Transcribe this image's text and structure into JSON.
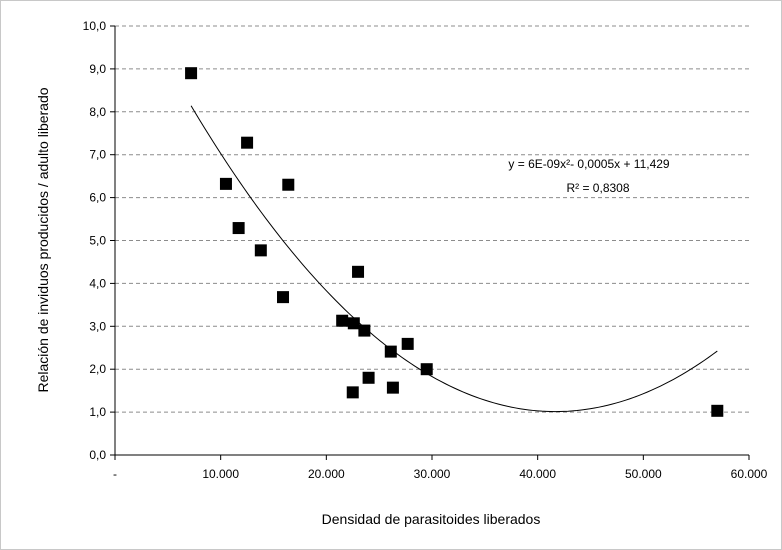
{
  "chart_data": {
    "type": "scatter",
    "xlabel": "Densidad de parasitoides liberados",
    "ylabel": "Relación de inviduos producidos / adulto liberado",
    "xlim": [
      0,
      60000
    ],
    "ylim": [
      0,
      10
    ],
    "x_tick_labels": [
      "-",
      "10.000",
      "20.000",
      "30.000",
      "40.000",
      "50.000",
      "60.000"
    ],
    "y_tick_labels": [
      "0,0",
      "1,0",
      "2,0",
      "3,0",
      "4,0",
      "5,0",
      "6,0",
      "7,0",
      "8,0",
      "9,0",
      "10,0"
    ],
    "grid": "horizontal dashed",
    "marker": "square",
    "marker_color": "#000000",
    "points": [
      {
        "x": 7200,
        "y": 8.9
      },
      {
        "x": 10500,
        "y": 6.32
      },
      {
        "x": 12500,
        "y": 7.28
      },
      {
        "x": 11700,
        "y": 5.29
      },
      {
        "x": 13800,
        "y": 4.77
      },
      {
        "x": 16400,
        "y": 6.3
      },
      {
        "x": 15900,
        "y": 3.68
      },
      {
        "x": 21500,
        "y": 3.13
      },
      {
        "x": 22600,
        "y": 3.07
      },
      {
        "x": 23000,
        "y": 4.27
      },
      {
        "x": 23600,
        "y": 2.9
      },
      {
        "x": 26100,
        "y": 2.41
      },
      {
        "x": 27700,
        "y": 2.59
      },
      {
        "x": 29500,
        "y": 2.0
      },
      {
        "x": 22500,
        "y": 1.46
      },
      {
        "x": 24000,
        "y": 1.8
      },
      {
        "x": 26300,
        "y": 1.57
      },
      {
        "x": 57000,
        "y": 1.03
      }
    ],
    "trendline": {
      "type": "polynomial",
      "coefficients": {
        "a": 6e-09,
        "b": -0.0005,
        "c": 11.429
      },
      "x_range": [
        7200,
        57000
      ],
      "equation": "y = 6E-09x²- 0,0005x + 11,429",
      "r2": "R² = 0,8308"
    }
  }
}
